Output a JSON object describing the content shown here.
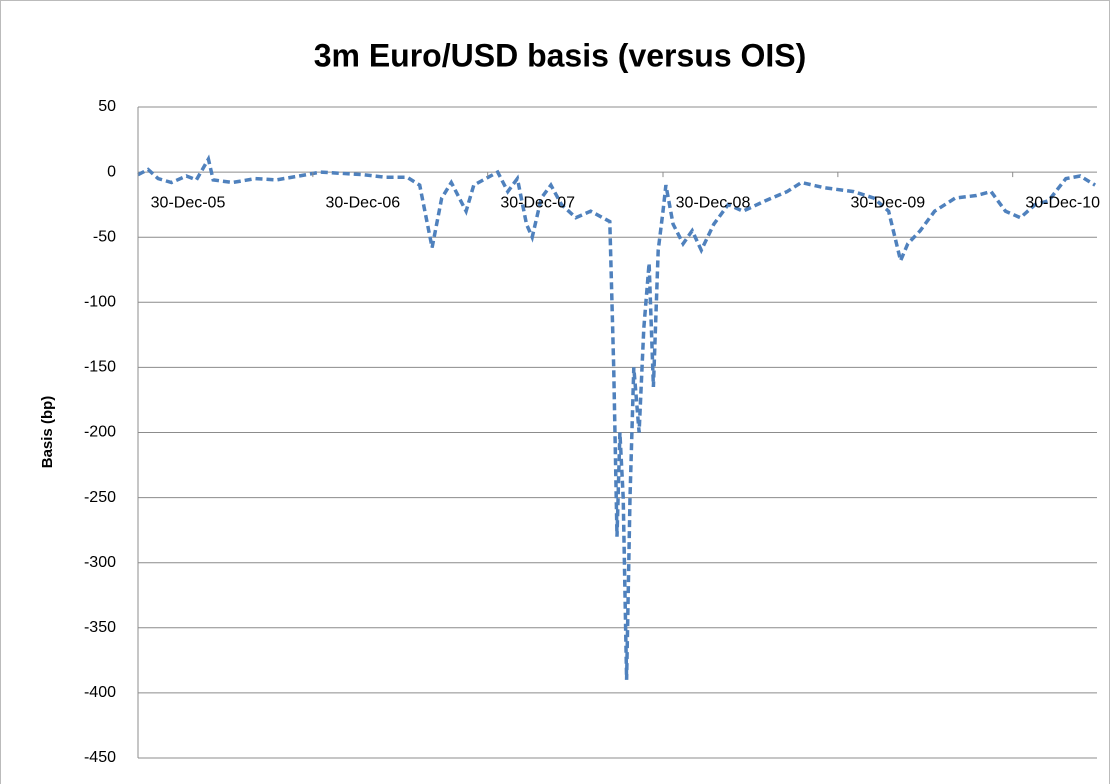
{
  "chart_data": {
    "type": "line",
    "title": "3m Euro/USD basis (versus OIS)",
    "y_label": "Basis (bp)",
    "grid": true,
    "color": "#4f81bd",
    "ylim": [
      -450,
      50
    ],
    "yticks": [
      -450,
      -400,
      -350,
      -300,
      -250,
      -200,
      -150,
      -100,
      -50,
      0,
      50
    ],
    "xlim": [
      "2005-12-30",
      "2011-06-24"
    ],
    "xticks": [
      {
        "value": "2005-12-30",
        "label": "30-Dec-05"
      },
      {
        "value": "2006-12-30",
        "label": "30-Dec-06"
      },
      {
        "value": "2007-12-30",
        "label": "30-Dec-07"
      },
      {
        "value": "2008-12-30",
        "label": "30-Dec-08"
      },
      {
        "value": "2009-12-30",
        "label": "30-Dec-09"
      },
      {
        "value": "2010-12-30",
        "label": "30-Dec-10"
      }
    ],
    "series": [
      {
        "name": "3m Euro/USD basis",
        "color": "#4f81bd",
        "x": [
          "2005-12-30",
          "2006-01-20",
          "2006-02-10",
          "2006-03-10",
          "2006-04-10",
          "2006-05-01",
          "2006-05-26",
          "2006-06-05",
          "2006-07-15",
          "2006-09-01",
          "2006-10-15",
          "2006-12-01",
          "2007-01-15",
          "2007-03-01",
          "2007-04-15",
          "2007-06-01",
          "2007-07-15",
          "2007-08-10",
          "2007-09-05",
          "2007-09-25",
          "2007-10-15",
          "2007-11-15",
          "2007-12-01",
          "2008-01-20",
          "2008-02-10",
          "2008-03-01",
          "2008-03-20",
          "2008-04-01",
          "2008-04-20",
          "2008-05-10",
          "2008-06-01",
          "2008-07-01",
          "2008-08-01",
          "2008-09-10",
          "2008-09-18",
          "2008-09-25",
          "2008-10-01",
          "2008-10-08",
          "2008-10-15",
          "2008-10-22",
          "2008-10-30",
          "2008-11-10",
          "2008-11-20",
          "2008-12-01",
          "2008-12-10",
          "2008-12-20",
          "2008-12-30",
          "2009-01-05",
          "2009-01-20",
          "2009-02-10",
          "2009-03-01",
          "2009-03-20",
          "2009-04-15",
          "2009-05-15",
          "2009-06-15",
          "2009-08-01",
          "2009-09-15",
          "2009-10-15",
          "2009-12-01",
          "2010-02-01",
          "2010-03-15",
          "2010-04-15",
          "2010-05-10",
          "2010-05-25",
          "2010-06-20",
          "2010-07-20",
          "2010-09-01",
          "2010-10-15",
          "2010-11-15",
          "2010-12-15",
          "2011-01-15",
          "2011-02-15",
          "2011-03-15",
          "2011-04-20",
          "2011-05-20",
          "2011-06-20"
        ],
        "values": [
          -2,
          2,
          -5,
          -8,
          -3,
          -6,
          10,
          -6,
          -8,
          -5,
          -6,
          -3,
          0,
          -1,
          -2,
          -4,
          -4,
          -10,
          -58,
          -20,
          -8,
          -30,
          -10,
          0,
          -15,
          -5,
          -40,
          -50,
          -20,
          -10,
          -25,
          -35,
          -30,
          -38,
          -150,
          -280,
          -200,
          -250,
          -390,
          -250,
          -150,
          -200,
          -120,
          -70,
          -165,
          -60,
          -30,
          -10,
          -40,
          -55,
          -45,
          -60,
          -40,
          -25,
          -30,
          -22,
          -15,
          -8,
          -12,
          -15,
          -20,
          -30,
          -68,
          -55,
          -45,
          -30,
          -20,
          -18,
          -15,
          -30,
          -35,
          -25,
          -22,
          -5,
          -3,
          -10
        ]
      }
    ]
  }
}
